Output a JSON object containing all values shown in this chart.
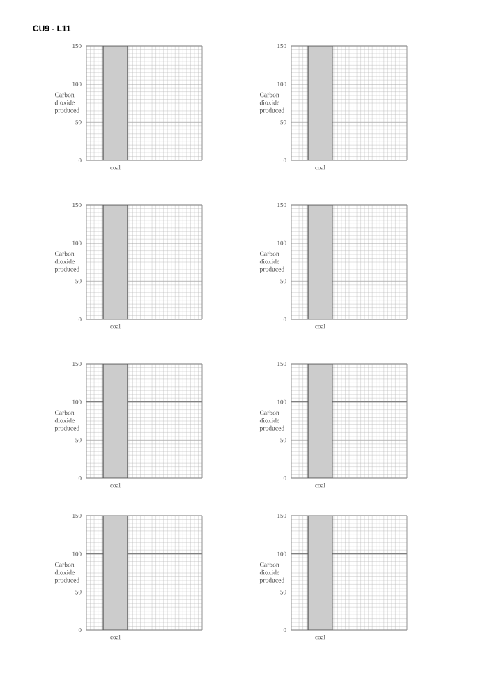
{
  "chart_data": [
    {
      "type": "bar",
      "title": "CU9 - L11",
      "ylabel": "Carbon dioxide produced",
      "categories": [
        "coal",
        null
      ],
      "values": [
        150,
        null
      ],
      "color": "#cccccc",
      "ylim": [
        0,
        150
      ],
      "yticks": [
        0,
        50,
        100,
        150
      ],
      "grid": true,
      "ref_lines": [
        {
          "axis": "y",
          "value": 100,
          "color": "#808080"
        }
      ]
    },
    {
      "type": "bar",
      "ylabel": "Carbon dioxide produced",
      "categories": [
        "coal",
        null
      ],
      "values": [
        150,
        null
      ],
      "color": "#cccccc",
      "ylim": [
        0,
        150
      ],
      "yticks": [
        0,
        50,
        100,
        150
      ],
      "grid": true,
      "ref_lines": [
        {
          "axis": "y",
          "value": 100,
          "color": "#808080"
        }
      ]
    },
    {
      "type": "bar",
      "ylabel": "Carbon dioxide produced",
      "categories": [
        "coal",
        null
      ],
      "values": [
        150,
        null
      ],
      "color": "#cccccc",
      "ylim": [
        0,
        150
      ],
      "yticks": [
        0,
        50,
        100,
        150
      ],
      "grid": true,
      "ref_lines": [
        {
          "axis": "y",
          "value": 100,
          "color": "#808080"
        }
      ]
    },
    {
      "type": "bar",
      "ylabel": "Carbon dioxide produced",
      "categories": [
        "coal",
        null
      ],
      "values": [
        150,
        null
      ],
      "color": "#cccccc",
      "ylim": [
        0,
        150
      ],
      "yticks": [
        0,
        50,
        100,
        150
      ],
      "grid": true,
      "ref_lines": [
        {
          "axis": "y",
          "value": 100,
          "color": "#808080"
        }
      ]
    },
    {
      "type": "bar",
      "ylabel": "Carbon dioxide produced",
      "categories": [
        "coal",
        null
      ],
      "values": [
        150,
        null
      ],
      "color": "#cccccc",
      "ylim": [
        0,
        150
      ],
      "yticks": [
        0,
        50,
        100,
        150
      ],
      "grid": true,
      "ref_lines": [
        {
          "axis": "y",
          "value": 100,
          "color": "#808080"
        }
      ]
    },
    {
      "type": "bar",
      "ylabel": "Carbon dioxide produced",
      "categories": [
        "coal",
        null
      ],
      "values": [
        150,
        null
      ],
      "color": "#cccccc",
      "ylim": [
        0,
        150
      ],
      "yticks": [
        0,
        50,
        100,
        150
      ],
      "grid": true,
      "ref_lines": [
        {
          "axis": "y",
          "value": 100,
          "color": "#808080"
        }
      ]
    },
    {
      "type": "bar",
      "ylabel": "Carbon dioxide produced",
      "categories": [
        "coal",
        null
      ],
      "values": [
        150,
        null
      ],
      "color": "#cccccc",
      "ylim": [
        0,
        150
      ],
      "yticks": [
        0,
        50,
        100,
        150
      ],
      "grid": true,
      "ref_lines": [
        {
          "axis": "y",
          "value": 100,
          "color": "#808080"
        }
      ]
    },
    {
      "type": "bar",
      "ylabel": "Carbon dioxide produced",
      "categories": [
        "coal",
        null
      ],
      "values": [
        150,
        null
      ],
      "color": "#cccccc",
      "ylim": [
        0,
        150
      ],
      "yticks": [
        0,
        50,
        100,
        150
      ],
      "grid": true,
      "ref_lines": [
        {
          "axis": "y",
          "value": 100,
          "color": "#808080"
        }
      ]
    }
  ]
}
